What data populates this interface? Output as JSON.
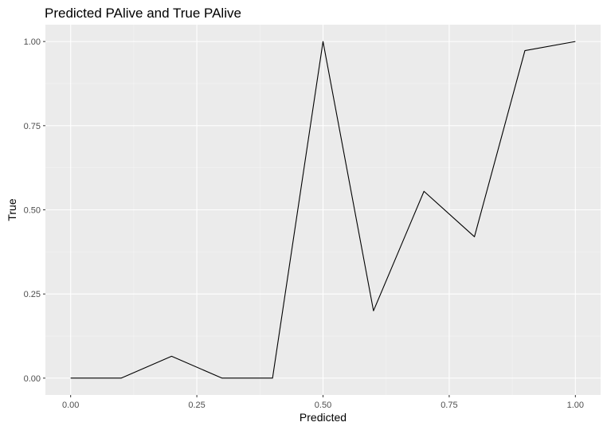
{
  "chart_data": {
    "type": "line",
    "title": "Predicted PAlive and True PAlive",
    "xlabel": "Predicted",
    "ylabel": "True",
    "xlim": [
      -0.05,
      1.05
    ],
    "ylim": [
      -0.05,
      1.05
    ],
    "x_ticks": [
      0,
      0.25,
      0.5,
      0.75,
      1
    ],
    "x_tick_labels": [
      "0.00",
      "0.25",
      "0.50",
      "0.75",
      "1.00"
    ],
    "y_ticks": [
      0,
      0.25,
      0.5,
      0.75,
      1
    ],
    "y_tick_labels": [
      "0.00",
      "0.25",
      "0.50",
      "0.75",
      "1.00"
    ],
    "x": [
      0.0,
      0.1,
      0.2,
      0.3,
      0.4,
      0.5,
      0.6,
      0.7,
      0.8,
      0.9,
      1.0
    ],
    "y": [
      0.0,
      0.0,
      0.065,
      0.0,
      0.0,
      1.0,
      0.2,
      0.555,
      0.42,
      0.973,
      1.0
    ],
    "line_color": "#000000",
    "panel_background": "#ebebeb",
    "grid": true,
    "legend": "none"
  }
}
